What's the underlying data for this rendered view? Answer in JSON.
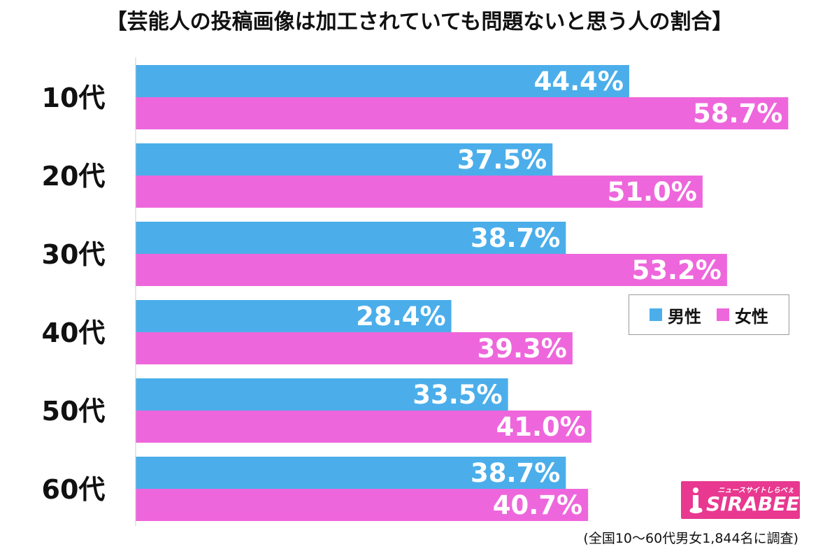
{
  "title": "【芸能人の投稿画像は加工されていても問題ないと思う人の割合】",
  "legend": {
    "male_label": "男性",
    "female_label": "女性"
  },
  "footnote": "(全国10〜60代男女1,844名に調査)",
  "logo": {
    "name": "SIRABEE",
    "tagline": "ニュースサイトしらべぇ"
  },
  "colors": {
    "male": "#4baeea",
    "female": "#ee66dc",
    "axis": "#cccccc"
  },
  "chart_data": {
    "type": "bar",
    "orientation": "horizontal",
    "title": "【芸能人の投稿画像は加工されていても問題ないと思う人の割合】",
    "categories": [
      "10代",
      "20代",
      "30代",
      "40代",
      "50代",
      "60代"
    ],
    "series": [
      {
        "name": "男性",
        "values": [
          44.4,
          37.5,
          38.7,
          28.4,
          33.5,
          38.7
        ]
      },
      {
        "name": "女性",
        "values": [
          58.7,
          51.0,
          53.2,
          39.3,
          41.0,
          40.7
        ]
      }
    ],
    "value_format": "%",
    "xlim": [
      0,
      100
    ],
    "grid": false,
    "legend_position": "right"
  }
}
